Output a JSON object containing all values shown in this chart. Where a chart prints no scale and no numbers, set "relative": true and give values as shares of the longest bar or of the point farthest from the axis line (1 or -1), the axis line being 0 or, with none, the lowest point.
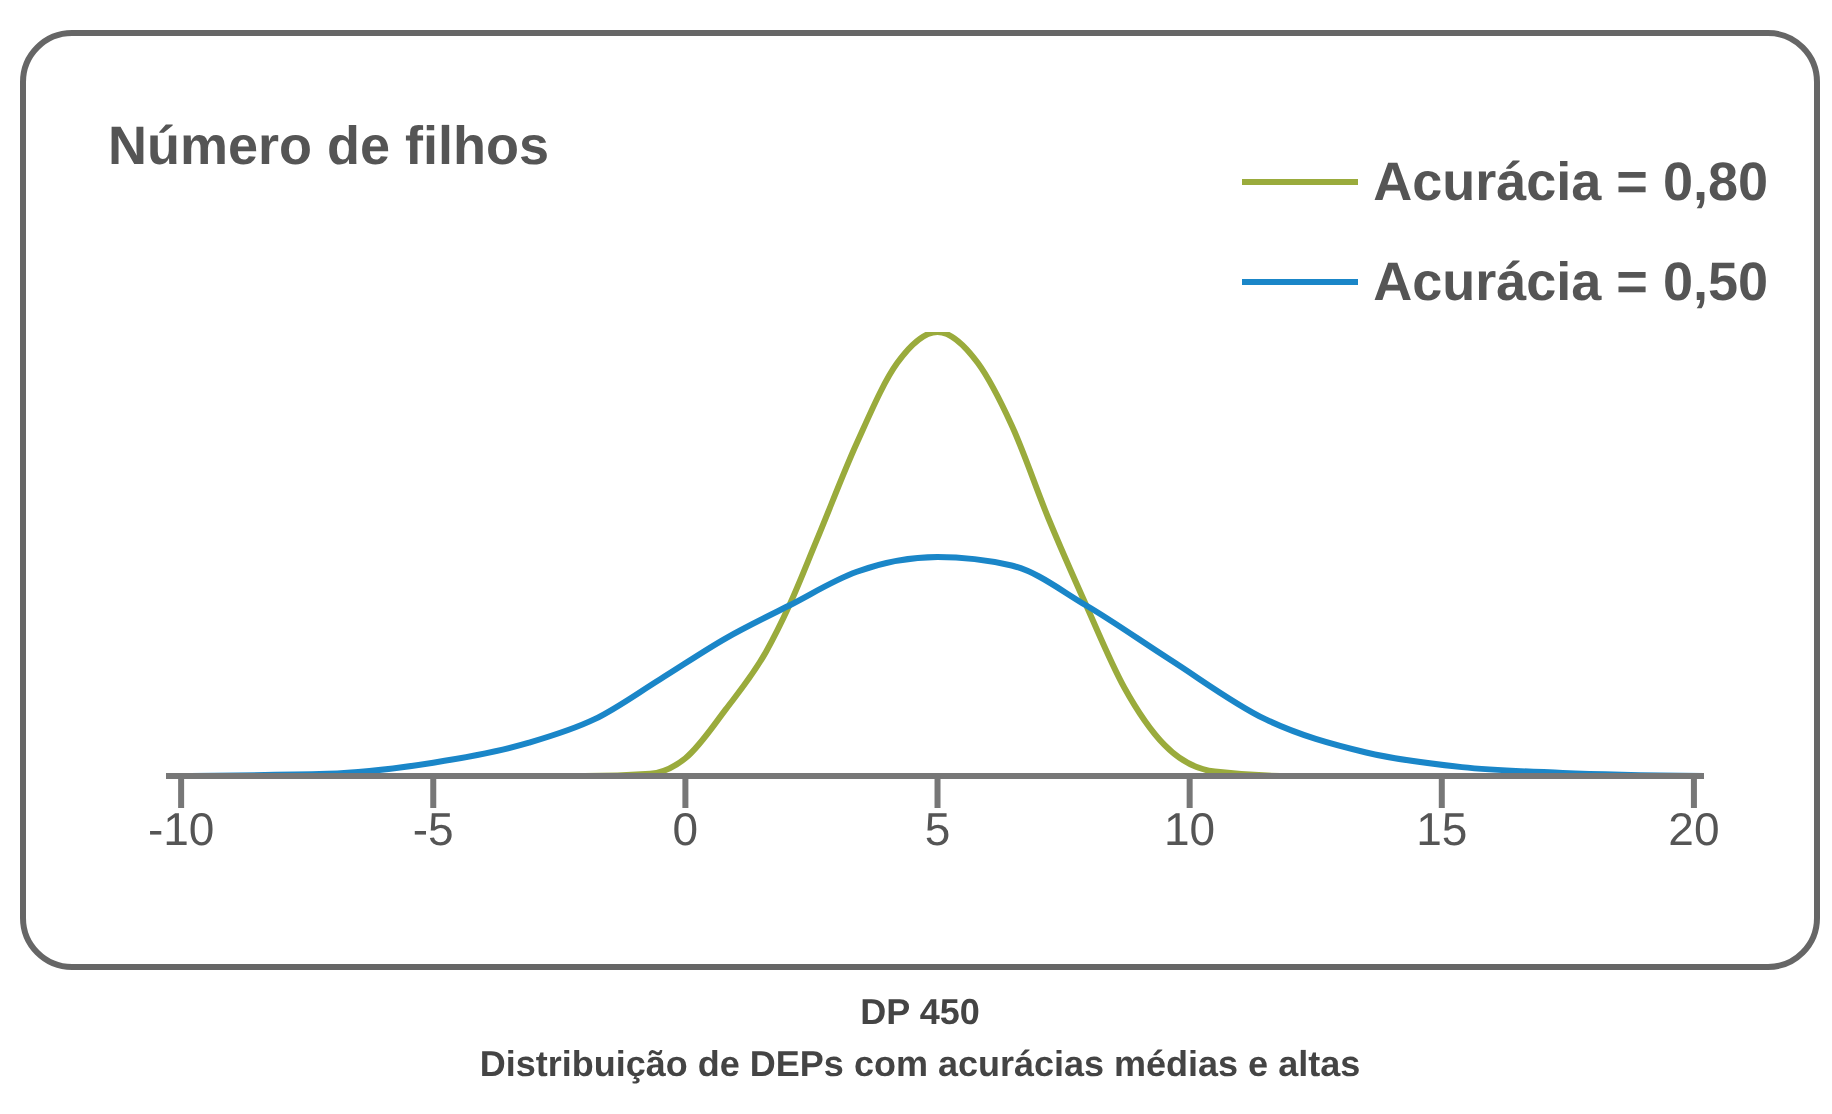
{
  "chart_data": {
    "type": "line",
    "ylabel": "Número de filhos",
    "relative": true,
    "legend": "top right",
    "xlim": [
      -10.3,
      20.2
    ],
    "xticks": [
      -10,
      -5,
      0,
      5,
      10,
      15,
      20
    ],
    "series": [
      {
        "name": "Acurácia = 0,80",
        "color": "#9aab3c",
        "x": [
          -10.3,
          -2,
          -0.7,
          0,
          0.8,
          1.6,
          2.06,
          2.6,
          3.4,
          4.2,
          5,
          5.8,
          6.47,
          7.2,
          7.95,
          8.7,
          9.5,
          10.5,
          12,
          20.2
        ],
        "values": [
          0,
          0,
          0.005,
          0.04,
          0.15,
          0.28,
          0.384,
          0.53,
          0.75,
          0.93,
          1,
          0.93,
          0.79,
          0.58,
          0.384,
          0.2,
          0.07,
          0.01,
          0,
          0
        ]
      },
      {
        "name": "Acurácia = 0,50",
        "color": "#1a86c8",
        "x": [
          -10.3,
          -7.1,
          -5,
          -3.1,
          -1.8,
          -0.5,
          0.8,
          2.06,
          3.4,
          5,
          6.47,
          7.95,
          9.6,
          11.5,
          13.5,
          15.4,
          17.4,
          20.2
        ],
        "values": [
          0,
          0.005,
          0.03,
          0.075,
          0.128,
          0.218,
          0.31,
          0.384,
          0.46,
          0.493,
          0.474,
          0.384,
          0.263,
          0.128,
          0.053,
          0.02,
          0.007,
          0
        ]
      }
    ],
    "annotations": [
      "DP 450",
      "Distribuição de DEPs com acurácias médias e altas"
    ]
  }
}
